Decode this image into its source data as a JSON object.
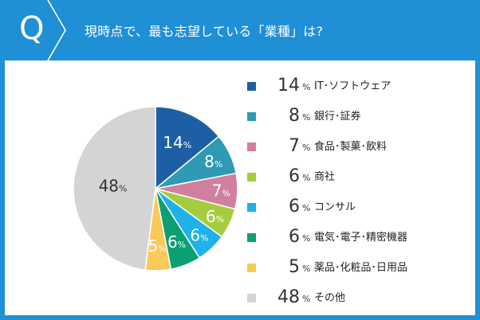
{
  "header": {
    "q_letter": "Q",
    "question": "現時点で、最も志望している「業種」は?",
    "background_color": "#1f8fd6"
  },
  "unit": "%",
  "chart_data": {
    "type": "pie",
    "start": "12 o'clock, clockwise",
    "legend_position": "right",
    "categories": [
      "IT･ソフトウェア",
      "銀行･証券",
      "食品･製菓･飲料",
      "商社",
      "コンサル",
      "電気･電子･精密機器",
      "薬品･化粧品･日用品",
      "その他"
    ],
    "values": [
      14,
      8,
      7,
      6,
      6,
      6,
      5,
      48
    ],
    "colors": [
      "#1d5fa4",
      "#2e9ab3",
      "#d0809e",
      "#a5cc3e",
      "#1fb1e8",
      "#0aa074",
      "#f9c95a",
      "#d4d4d4"
    ],
    "label_colors": [
      "#ffffff",
      "#ffffff",
      "#ffffff",
      "#ffffff",
      "#ffffff",
      "#ffffff",
      "#ffffff",
      "#333333"
    ]
  }
}
